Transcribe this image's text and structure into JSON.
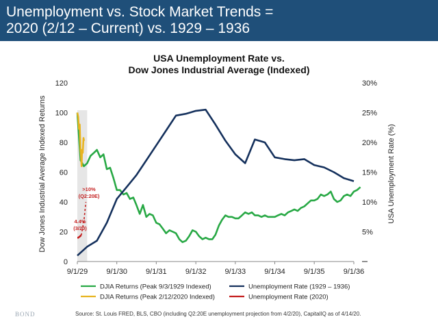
{
  "header": {
    "line1": "Unemployment vs. Stock Market Trends =",
    "line2": "2020 (2/12 – Current) vs. 1929 – 1936",
    "bg": "#1f4f79"
  },
  "chart_data": {
    "type": "line",
    "title_line1": "USA Unemployment Rate vs.",
    "title_line2": "Dow Jones Industrial Average (Indexed)",
    "ylabel_left": "Dow Jones Industrial Average Indexed Returns",
    "ylabel_right": "USA Unemployment Rate (%)",
    "ylim_left": [
      0,
      120
    ],
    "ylim_right": [
      0,
      30
    ],
    "left_ticks": [
      "0",
      "20",
      "40",
      "60",
      "80",
      "100",
      "120"
    ],
    "right_ticks": [
      "",
      "5%",
      "10%",
      "15%",
      "20%",
      "25%",
      "30%"
    ],
    "x_ticks": [
      "9/1/29",
      "9/1/30",
      "9/1/31",
      "9/1/32",
      "9/1/33",
      "9/1/34",
      "9/1/35",
      "9/1/36"
    ],
    "shaded_region": {
      "from": "9/1/29",
      "to": "12/1/29"
    },
    "series": [
      {
        "name": "DJIA Returns (Peak 9/3/1929 Indexed)",
        "axis": "left",
        "color": "#27a844",
        "dash": "",
        "x": [
          "9/1/29",
          "10/1/29",
          "11/1/29",
          "12/1/29",
          "1/1/30",
          "2/1/30",
          "3/1/30",
          "4/1/30",
          "5/1/30",
          "6/1/30",
          "7/1/30",
          "8/1/30",
          "9/1/30",
          "10/1/30",
          "11/1/30",
          "12/1/30",
          "1/1/31",
          "2/1/31",
          "3/1/31",
          "4/1/31",
          "5/1/31",
          "6/1/31",
          "7/1/31",
          "8/1/31",
          "9/1/31",
          "10/1/31",
          "11/1/31",
          "12/1/31",
          "1/1/32",
          "2/1/32",
          "3/1/32",
          "4/1/32",
          "5/1/32",
          "6/1/32",
          "7/1/32",
          "8/1/32",
          "9/1/32",
          "10/1/32",
          "11/1/32",
          "12/1/32",
          "1/1/33",
          "2/1/33",
          "3/1/33",
          "4/1/33",
          "5/1/33",
          "6/1/33",
          "7/1/33",
          "8/1/33",
          "9/1/33",
          "10/1/33",
          "11/1/33",
          "12/1/33",
          "1/1/34",
          "2/1/34",
          "3/1/34",
          "4/1/34",
          "5/1/34",
          "6/1/34",
          "7/1/34",
          "8/1/34",
          "9/1/34",
          "10/1/34",
          "11/1/34",
          "12/1/34",
          "1/1/35",
          "2/1/35",
          "3/1/35",
          "4/1/35",
          "5/1/35",
          "6/1/35",
          "7/1/35",
          "8/1/35",
          "9/1/35",
          "10/1/35",
          "11/1/35",
          "12/1/35",
          "1/1/36",
          "2/1/36",
          "3/1/36",
          "4/1/36",
          "5/1/36",
          "6/1/36",
          "7/1/36",
          "8/1/36",
          "9/1/36",
          "10/1/36",
          "11/1/36"
        ],
        "values": [
          100,
          68,
          64,
          66,
          71,
          73,
          75,
          70,
          72,
          62,
          63,
          56,
          48,
          48,
          45,
          46,
          42,
          43,
          38,
          32,
          38,
          30,
          32,
          31,
          26,
          25,
          22,
          19,
          21,
          20,
          19,
          15,
          13,
          14,
          17,
          21,
          20,
          17,
          15,
          16,
          15,
          15,
          18,
          24,
          28,
          31,
          30,
          30,
          29,
          29,
          31,
          33,
          32,
          33,
          31,
          31,
          30,
          31,
          30,
          30,
          30,
          31,
          32,
          31,
          33,
          34,
          35,
          34,
          36,
          37,
          39,
          41,
          41,
          42,
          45,
          44,
          45,
          47,
          42,
          40,
          41,
          44,
          45,
          44,
          47,
          48,
          50
        ]
      },
      {
        "name": "DJIA Returns (Peak 2/12/2020 Indexed)",
        "axis": "left",
        "color": "#e8b420",
        "dash": "",
        "x": [
          "2/12/20",
          "2/20/20",
          "2/27/20",
          "3/5/20",
          "3/12/20",
          "3/16/20",
          "3/23/20",
          "3/26/20",
          "4/2/20",
          "4/9/20",
          "4/14/20"
        ],
        "values": [
          100,
          97,
          89,
          92,
          75,
          72,
          64,
          75,
          73,
          83,
          81
        ]
      },
      {
        "name": "Unemployment Rate (1929 – 1936)",
        "axis": "right",
        "color": "#14305c",
        "dash": "",
        "x": [
          "9/1/29",
          "12/1/29",
          "3/1/30",
          "6/1/30",
          "9/1/30",
          "12/1/30",
          "3/1/31",
          "6/1/31",
          "9/1/31",
          "12/1/31",
          "3/1/32",
          "6/1/32",
          "9/1/32",
          "12/1/32",
          "3/1/33",
          "6/1/33",
          "9/1/33",
          "12/1/33",
          "3/1/34",
          "6/1/34",
          "9/1/34",
          "12/1/34",
          "3/1/35",
          "6/1/35",
          "9/1/35",
          "12/1/35",
          "3/1/36",
          "6/1/36",
          "9/1/36"
        ],
        "values": [
          1.0,
          2.5,
          3.5,
          6.5,
          10.5,
          12.5,
          14.5,
          17.0,
          19.5,
          22.0,
          24.5,
          24.8,
          25.3,
          25.5,
          23.0,
          20.3,
          18.0,
          16.5,
          20.5,
          20.0,
          17.5,
          17.2,
          17.0,
          17.2,
          16.2,
          15.8,
          15.0,
          14.0,
          13.5
        ]
      },
      {
        "name": "Unemployment Rate (2020)",
        "axis": "right",
        "color": "#c41e1e",
        "dash": "",
        "x": [
          "2/12/20",
          "2/20/20",
          "2/27/20",
          "3/5/20",
          "3/12/20",
          "3/16/20",
          "3/20/20"
        ],
        "values": [
          4.0,
          4.0,
          4.1,
          4.2,
          4.3,
          4.4,
          4.4
        ]
      },
      {
        "name": "Unemployment Rate (2020) Q2:20E projection",
        "axis": "right",
        "color": "#c41e1e",
        "dash": "3,3",
        "x": [
          "3/20/20",
          "4/14/20",
          "5/1/20"
        ],
        "values": [
          4.4,
          7.0,
          10.0
        ]
      }
    ],
    "annotations": [
      {
        "text": ">10%",
        "sub": "(Q2:20E)"
      },
      {
        "text": "4.4%",
        "sub": "(3/20)"
      }
    ],
    "legend": {
      "placement": "bottom",
      "items": [
        {
          "label": "DJIA Returns (Peak 9/3/1929 Indexed)",
          "color": "#27a844"
        },
        {
          "label": "DJIA Returns (Peak 2/12/2020 Indexed)",
          "color": "#e8b420"
        },
        {
          "label": "Unemployment Rate (1929 – 1936)",
          "color": "#14305c"
        },
        {
          "label": "Unemployment Rate (2020)",
          "color": "#c41e1e"
        }
      ]
    },
    "grid": false
  },
  "footer": {
    "source": "Source: St. Louis FRED, BLS, CBO (including Q2:20E unemployment projection from 4/2/20), CapitalIQ as of 4/14/20.",
    "brand": "BOND"
  }
}
